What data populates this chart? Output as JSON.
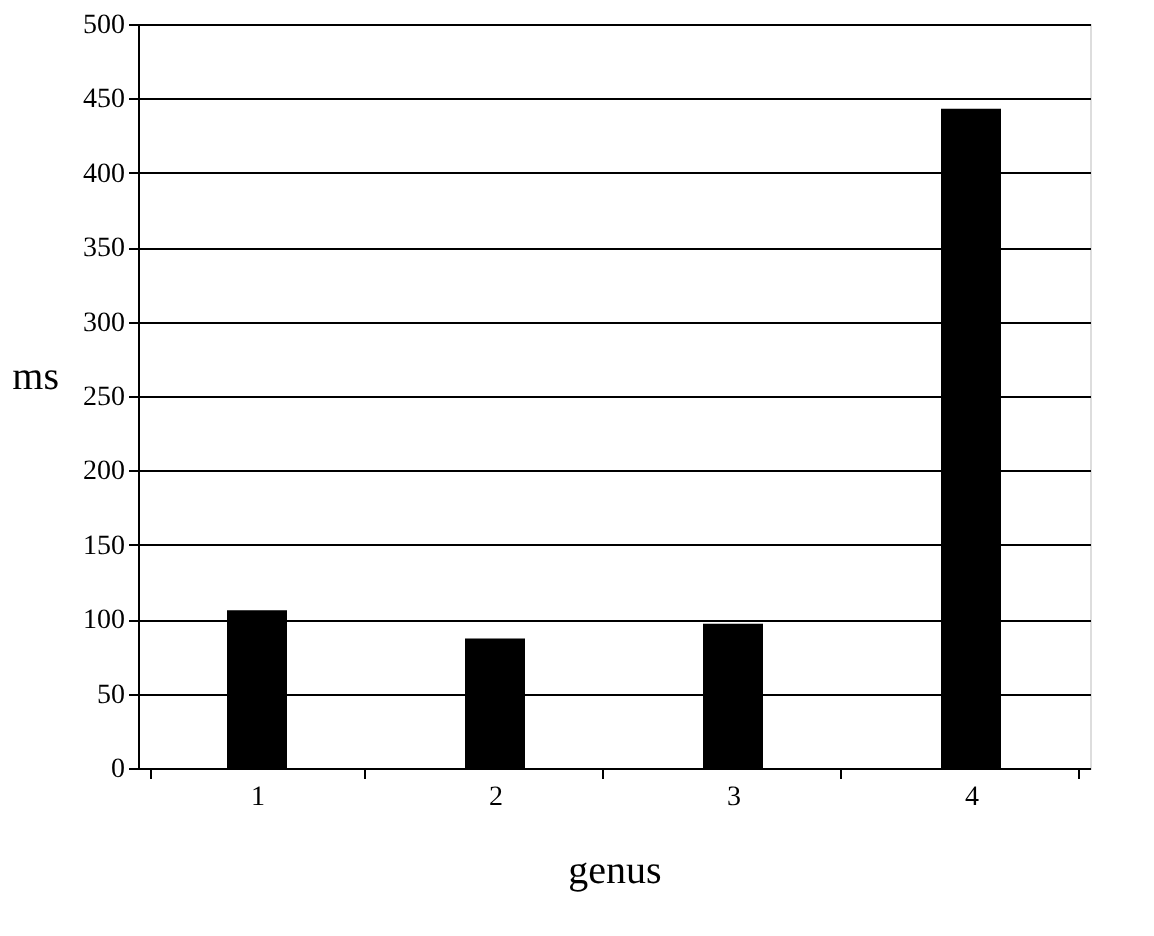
{
  "chart_data": {
    "type": "bar",
    "xlabel": "genus",
    "ylabel": "ms",
    "categories": [
      "1",
      "2",
      "3",
      "4"
    ],
    "values": [
      106,
      87,
      97,
      443
    ],
    "color": "#000000",
    "ylim": [
      0,
      500
    ],
    "yticks": [
      0,
      50,
      100,
      150,
      200,
      250,
      300,
      350,
      400,
      450,
      500
    ],
    "grid": "y"
  }
}
